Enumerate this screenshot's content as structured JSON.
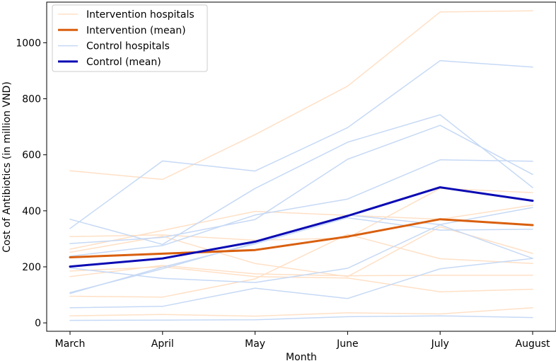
{
  "chart_data": {
    "type": "line",
    "title": "",
    "xlabel": "Month",
    "ylabel": "Cost of Antibiotics (in million VND)",
    "categories": [
      "March",
      "April",
      "May",
      "June",
      "July",
      "August"
    ],
    "ylim": [
      -30,
      1145
    ],
    "yticks": [
      0,
      200,
      400,
      600,
      800,
      1000
    ],
    "grid": false,
    "legend_position": "top-left",
    "colors": {
      "intervention_hospital": "#ffe0c6",
      "control_hospital": "#c6d9f5",
      "intervention_mean": "#d95f0e",
      "control_mean": "#0a0ab4"
    },
    "legend": [
      {
        "label": "Intervention hospitals",
        "style": "intervention_hospital"
      },
      {
        "label": "Intervention (mean)",
        "style": "intervention_mean"
      },
      {
        "label": "Control hospitals",
        "style": "control_hospital"
      },
      {
        "label": "Control (mean)",
        "style": "control_mean"
      }
    ],
    "series": [
      {
        "name": "Intervention hospital 1",
        "group": "intervention_hospital",
        "values": [
          543,
          512,
          672,
          845,
          1110,
          1114
        ]
      },
      {
        "name": "Intervention hospital 2",
        "group": "intervention_hospital",
        "values": [
          308,
          314,
          295,
          303,
          480,
          465
        ]
      },
      {
        "name": "Intervention hospital 3",
        "group": "intervention_hospital",
        "values": [
          263,
          330,
          398,
          384,
          370,
          420
        ]
      },
      {
        "name": "Intervention hospital 4",
        "group": "intervention_hospital",
        "values": [
          252,
          309,
          212,
          165,
          343,
          248
        ]
      },
      {
        "name": "Intervention hospital 5",
        "group": "intervention_hospital",
        "values": [
          165,
          205,
          175,
          168,
          170,
          170
        ]
      },
      {
        "name": "Intervention hospital 6",
        "group": "intervention_hospital",
        "values": [
          185,
          200,
          165,
          160,
          111,
          120
        ]
      },
      {
        "name": "Intervention hospital 7",
        "group": "intervention_hospital",
        "values": [
          95,
          92,
          157,
          316,
          229,
          212
        ]
      },
      {
        "name": "Intervention hospital 8",
        "group": "intervention_hospital",
        "values": [
          25,
          30,
          24,
          36,
          32,
          54
        ]
      },
      {
        "name": "Control hospital 1",
        "group": "control_hospital",
        "values": [
          337,
          578,
          542,
          697,
          936,
          913
        ]
      },
      {
        "name": "Control hospital 2",
        "group": "control_hospital",
        "values": [
          370,
          280,
          480,
          645,
          743,
          483
        ]
      },
      {
        "name": "Control hospital 3",
        "group": "control_hospital",
        "values": [
          283,
          305,
          369,
          584,
          705,
          530
        ]
      },
      {
        "name": "Control hospital 4",
        "group": "control_hospital",
        "values": [
          238,
          276,
          385,
          442,
          582,
          577
        ]
      },
      {
        "name": "Control hospital 5",
        "group": "control_hospital",
        "values": [
          105,
          199,
          282,
          375,
          331,
          334
        ]
      },
      {
        "name": "Control hospital 6",
        "group": "control_hospital",
        "values": [
          108,
          193,
          286,
          385,
          351,
          412
        ]
      },
      {
        "name": "Control hospital 7",
        "group": "control_hospital",
        "values": [
          196,
          159,
          144,
          195,
          350,
          230
        ]
      },
      {
        "name": "Control hospital 8",
        "group": "control_hospital",
        "values": [
          54,
          59,
          124,
          87,
          193,
          230
        ]
      },
      {
        "name": "Control hospital 9",
        "group": "control_hospital",
        "values": [
          9,
          10,
          11,
          22,
          25,
          19
        ]
      },
      {
        "name": "Intervention (mean)",
        "group": "intervention_mean",
        "values": [
          234,
          247,
          260,
          308,
          370,
          349
        ]
      },
      {
        "name": "Control (mean)",
        "group": "control_mean",
        "values": [
          201,
          230,
          290,
          382,
          484,
          436
        ]
      }
    ]
  }
}
